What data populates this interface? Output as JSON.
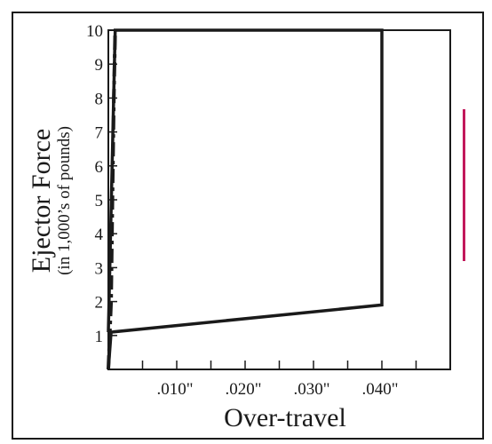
{
  "chart_data": {
    "type": "line",
    "title": "",
    "xlabel": "Over-travel",
    "ylabel": "Ejector Force",
    "ylabel_sub": "(in 1,000’s of pounds)",
    "xlim": [
      0,
      0.05
    ],
    "ylim": [
      0,
      10
    ],
    "x_ticks": [
      {
        "value": 0.005,
        "label": ""
      },
      {
        "value": 0.01,
        "label": ".010\""
      },
      {
        "value": 0.015,
        "label": ""
      },
      {
        "value": 0.02,
        "label": ".020\""
      },
      {
        "value": 0.025,
        "label": ""
      },
      {
        "value": 0.03,
        "label": ".030\""
      },
      {
        "value": 0.035,
        "label": ""
      },
      {
        "value": 0.04,
        "label": ".040\""
      },
      {
        "value": 0.045,
        "label": ""
      }
    ],
    "y_ticks": [
      {
        "value": 1,
        "label": "1"
      },
      {
        "value": 2,
        "label": "2"
      },
      {
        "value": 3,
        "label": "3"
      },
      {
        "value": 4,
        "label": "4"
      },
      {
        "value": 5,
        "label": "5"
      },
      {
        "value": 6,
        "label": "6"
      },
      {
        "value": 7,
        "label": "7"
      },
      {
        "value": 8,
        "label": "8"
      },
      {
        "value": 9,
        "label": "9"
      },
      {
        "value": 10,
        "label": "10"
      }
    ],
    "grid": false,
    "legend": "none",
    "series": [
      {
        "style": "solid",
        "color": "#1a1a1a",
        "points": [
          {
            "x": 0.0,
            "y": 0.0
          },
          {
            "x": 0.0004,
            "y": 1.1
          },
          {
            "x": 0.04,
            "y": 1.9
          },
          {
            "x": 0.04,
            "y": 10.0
          },
          {
            "x": 0.001,
            "y": 10.0
          },
          {
            "x": 0.0,
            "y": 1.1
          }
        ]
      },
      {
        "style": "dash-dot",
        "color": "#1a1a1a",
        "points": [
          {
            "x": 0.0,
            "y": 0.0
          },
          {
            "x": 0.0004,
            "y": 2.0
          },
          {
            "x": 0.0006,
            "y": 5.0
          },
          {
            "x": 0.0008,
            "y": 8.0
          },
          {
            "x": 0.001,
            "y": 10.0
          }
        ]
      }
    ],
    "accent_color": "#c2185b"
  }
}
